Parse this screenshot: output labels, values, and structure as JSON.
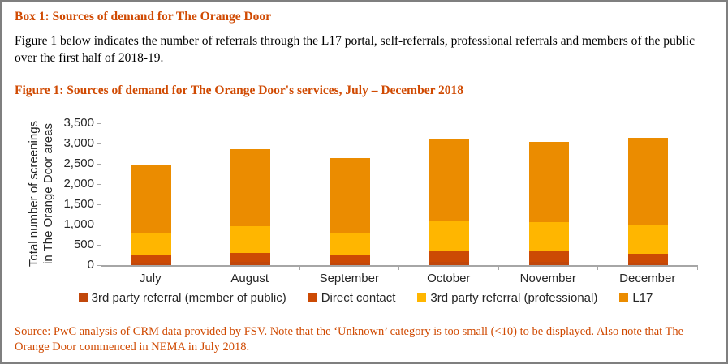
{
  "box": {
    "title": "Box 1: Sources of demand for The Orange Door",
    "intro": "Figure 1 below indicates the number of referrals through the L17 portal, self-referrals, professional referrals and members of the public over the first half of 2018-19.",
    "figure_title": "Figure 1: Sources of demand for The Orange Door's services, July – December 2018",
    "source_note": "Source: PwC analysis of CRM data provided by FSV. Note that the ‘Unknown’ category is too small (<10) to be displayed. Also note that The Orange Door commenced in NEMA in July 2018."
  },
  "colors": {
    "heading_orange": "#D04A02",
    "axis_gray": "#A6A6A6",
    "border_gray": "#7F7F7F",
    "chart_text": "#262626"
  },
  "chart_data": {
    "type": "bar",
    "stacked": true,
    "title": "Figure 1: Sources of demand for The Orange Door's services, July – December 2018",
    "categories": [
      "July",
      "August",
      "September",
      "October",
      "November",
      "December"
    ],
    "series": [
      {
        "name": "3rd party referral (member of public)",
        "color": "#C1470B",
        "values": [
          60,
          75,
          60,
          90,
          85,
          70
        ]
      },
      {
        "name": "Direct contact",
        "color": "#CC4A04",
        "values": [
          190,
          225,
          180,
          270,
          265,
          210
        ]
      },
      {
        "name": "3rd party referral (professional)",
        "color": "#FFB600",
        "values": [
          540,
          670,
          560,
          730,
          720,
          700
        ]
      },
      {
        "name": "L17",
        "color": "#EB8C00",
        "values": [
          1680,
          1900,
          1850,
          2040,
          1980,
          2160
        ]
      }
    ],
    "totals": [
      2470,
      2870,
      2650,
      3130,
      3050,
      3140
    ],
    "xlabel": "",
    "ylabel": "Total number of screenings in The Orange Door areas",
    "ylim": [
      0,
      3500
    ],
    "ytick_step": 500,
    "ytick_labels": [
      "0",
      "500",
      "1,000",
      "1,500",
      "2,000",
      "2,500",
      "3,000",
      "3,500"
    ],
    "grid": false,
    "legend_position": "bottom"
  }
}
